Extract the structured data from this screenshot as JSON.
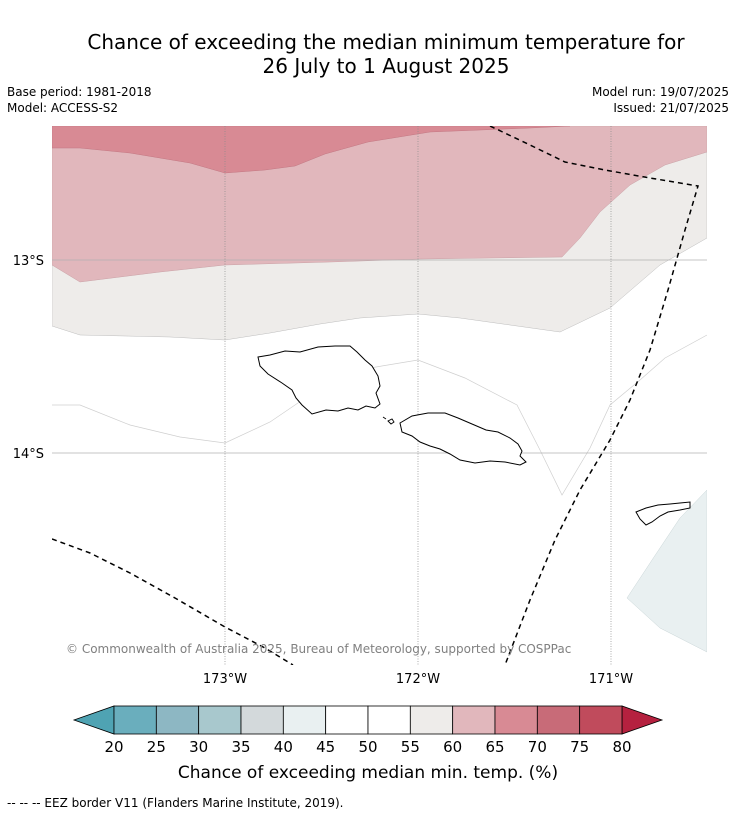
{
  "title_line1": "Chance of exceeding the median minimum temperature for",
  "title_line2": "26 July to 1 August 2025",
  "base_period": "Base period: 1981-2018",
  "model": "Model: ACCESS-S2",
  "model_run": "Model run: 19/07/2025",
  "issued": "Issued: 21/07/2025",
  "copyright": "© Commonwealth of Australia 2025, Bureau of Meteorology, supported by COSPPac",
  "lat_labels": [
    "13°S",
    "14°S"
  ],
  "lon_labels": [
    "173°W",
    "172°W",
    "171°W"
  ],
  "colorbar": {
    "ticks": [
      "20",
      "25",
      "30",
      "35",
      "40",
      "45",
      "50",
      "55",
      "60",
      "65",
      "70",
      "75",
      "80"
    ],
    "colors": [
      "#6aaebd",
      "#8db7c3",
      "#a8c8cd",
      "#d3d9db",
      "#e9f0f1",
      "#ffffff",
      "#ffffff",
      "#eeecea",
      "#e1b7bc",
      "#d88a94",
      "#c86b78",
      "#c04b5c"
    ],
    "low_extend_color": "#4fa3b3",
    "high_extend_color": "#b5213f",
    "label": "Chance of exceeding median min. temp. (%)"
  },
  "legend_line": "-- -- -- EEZ border V11 (Flanders Marine Institute, 2019)."
}
